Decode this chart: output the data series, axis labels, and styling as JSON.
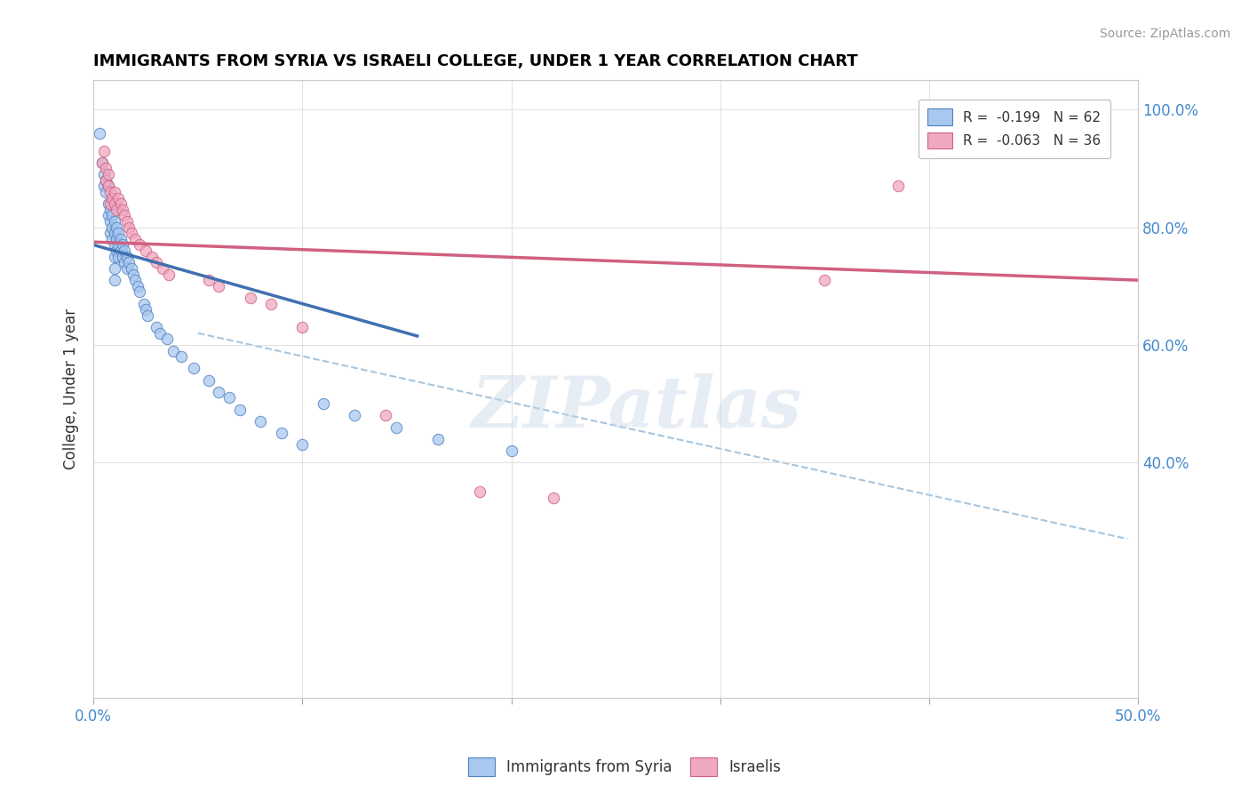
{
  "title": "IMMIGRANTS FROM SYRIA VS ISRAELI COLLEGE, UNDER 1 YEAR CORRELATION CHART",
  "source_text": "Source: ZipAtlas.com",
  "ylabel": "College, Under 1 year",
  "xlim": [
    0.0,
    0.5
  ],
  "ylim": [
    0.0,
    1.05
  ],
  "xticks": [
    0.0,
    0.1,
    0.2,
    0.3,
    0.4,
    0.5
  ],
  "xticklabels": [
    "0.0%",
    "",
    "",
    "",
    "",
    "50.0%"
  ],
  "yticks": [
    0.4,
    0.6,
    0.8,
    1.0
  ],
  "yticklabels": [
    "40.0%",
    "60.0%",
    "80.0%",
    "100.0%"
  ],
  "color_blue": "#a8c8f0",
  "color_pink": "#f0a8c0",
  "edge_blue": "#5080c0",
  "edge_pink": "#d06080",
  "line_blue_color": "#4070b0",
  "line_pink_color": "#d06080",
  "line_dashed_color": "#90b8d8",
  "watermark_text": "ZIPatlas",
  "blue_scatter_x": [
    0.003,
    0.004,
    0.005,
    0.005,
    0.006,
    0.006,
    0.007,
    0.007,
    0.007,
    0.008,
    0.008,
    0.008,
    0.009,
    0.009,
    0.009,
    0.01,
    0.01,
    0.01,
    0.01,
    0.01,
    0.01,
    0.011,
    0.011,
    0.011,
    0.012,
    0.012,
    0.012,
    0.013,
    0.013,
    0.014,
    0.014,
    0.015,
    0.015,
    0.016,
    0.016,
    0.017,
    0.018,
    0.019,
    0.02,
    0.021,
    0.022,
    0.024,
    0.025,
    0.026,
    0.03,
    0.032,
    0.035,
    0.038,
    0.042,
    0.048,
    0.055,
    0.06,
    0.065,
    0.07,
    0.08,
    0.09,
    0.1,
    0.11,
    0.125,
    0.145,
    0.165,
    0.2
  ],
  "blue_scatter_y": [
    0.96,
    0.91,
    0.89,
    0.87,
    0.88,
    0.86,
    0.87,
    0.84,
    0.82,
    0.83,
    0.81,
    0.79,
    0.82,
    0.8,
    0.78,
    0.81,
    0.79,
    0.77,
    0.75,
    0.73,
    0.71,
    0.8,
    0.78,
    0.76,
    0.79,
    0.77,
    0.75,
    0.78,
    0.76,
    0.77,
    0.75,
    0.76,
    0.74,
    0.75,
    0.73,
    0.74,
    0.73,
    0.72,
    0.71,
    0.7,
    0.69,
    0.67,
    0.66,
    0.65,
    0.63,
    0.62,
    0.61,
    0.59,
    0.58,
    0.56,
    0.54,
    0.52,
    0.51,
    0.49,
    0.47,
    0.45,
    0.43,
    0.5,
    0.48,
    0.46,
    0.44,
    0.42
  ],
  "pink_scatter_x": [
    0.004,
    0.005,
    0.006,
    0.006,
    0.007,
    0.007,
    0.008,
    0.008,
    0.009,
    0.01,
    0.01,
    0.011,
    0.012,
    0.013,
    0.014,
    0.015,
    0.016,
    0.017,
    0.018,
    0.02,
    0.022,
    0.025,
    0.028,
    0.03,
    0.033,
    0.036,
    0.055,
    0.06,
    0.075,
    0.085,
    0.1,
    0.14,
    0.185,
    0.22,
    0.35,
    0.385
  ],
  "pink_scatter_y": [
    0.91,
    0.93,
    0.9,
    0.88,
    0.89,
    0.87,
    0.86,
    0.84,
    0.85,
    0.86,
    0.84,
    0.83,
    0.85,
    0.84,
    0.83,
    0.82,
    0.81,
    0.8,
    0.79,
    0.78,
    0.77,
    0.76,
    0.75,
    0.74,
    0.73,
    0.72,
    0.71,
    0.7,
    0.68,
    0.67,
    0.63,
    0.48,
    0.35,
    0.34,
    0.71,
    0.87
  ],
  "blue_line_x": [
    0.0,
    0.155
  ],
  "blue_line_y": [
    0.77,
    0.615
  ],
  "pink_line_x": [
    0.0,
    0.5
  ],
  "pink_line_y": [
    0.775,
    0.71
  ],
  "dashed_line_x": [
    0.05,
    0.495
  ],
  "dashed_line_y": [
    0.62,
    0.27
  ]
}
